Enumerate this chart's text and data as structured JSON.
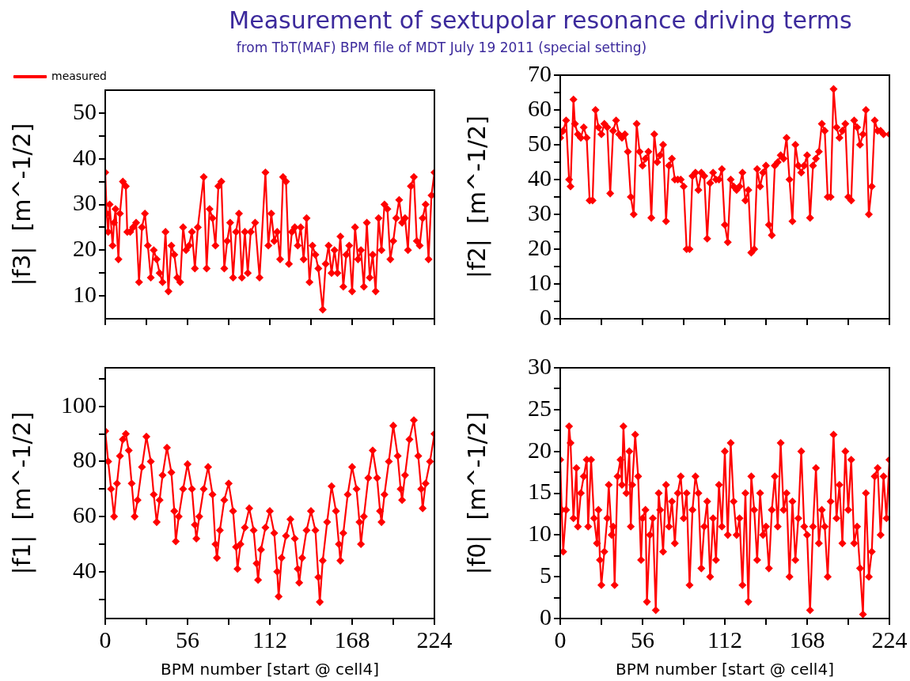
{
  "chart_data": [
    {
      "type": "line",
      "title": "Measurement of sextupolar resonance driving terms",
      "subtitle": "from TbT(MAF) BPM file of MDT July 19 2011 (special setting)",
      "ylabel": "|f3|  [m^-1/2]",
      "legend": "top left",
      "marker": "diamond",
      "tick_labels": "y",
      "xlim": [
        0,
        224
      ],
      "xticks": [
        0,
        {
          "value": 28,
          "label": null
        },
        56,
        {
          "value": 84,
          "label": null
        },
        112,
        {
          "value": 140,
          "label": null
        },
        168,
        {
          "value": 196,
          "label": null
        },
        224
      ],
      "ylim": [
        5,
        55
      ],
      "yticks": [
        10,
        {
          "value": 15,
          "label": null
        },
        20,
        {
          "value": 25,
          "label": null
        },
        30,
        {
          "value": 35,
          "label": null
        },
        40,
        {
          "value": 45,
          "label": null
        },
        50
      ],
      "series": [
        {
          "name": "measured",
          "color": "#ff0000",
          "x": [
            0,
            1,
            2,
            3,
            5,
            6,
            7,
            9,
            10,
            12,
            14,
            15,
            17,
            19,
            21,
            23,
            25,
            27,
            29,
            31,
            33,
            35,
            37,
            39,
            41,
            43,
            45,
            47,
            49,
            51,
            53,
            55,
            57,
            59,
            61,
            63,
            67,
            69,
            71,
            73,
            75,
            77,
            79,
            81,
            83,
            85,
            87,
            89,
            91,
            93,
            95,
            97,
            99,
            102,
            105,
            109,
            111,
            113,
            115,
            117,
            119,
            121,
            123,
            125,
            127,
            129,
            131,
            133,
            135,
            137,
            139,
            141,
            143,
            145,
            148,
            150,
            152,
            154,
            156,
            158,
            160,
            162,
            164,
            166,
            168,
            170,
            172,
            174,
            176,
            178,
            180,
            182,
            184,
            186,
            188,
            190,
            192,
            194,
            196,
            198,
            200,
            202,
            204,
            206,
            208,
            210,
            212,
            214,
            216,
            218,
            220,
            222,
            224
          ],
          "values": [
            37,
            28,
            24,
            30,
            21,
            26,
            29,
            18,
            28,
            35,
            34,
            24,
            24,
            25,
            26,
            13,
            25,
            28,
            21,
            14,
            20,
            18,
            15,
            13,
            24,
            11,
            21,
            19,
            14,
            13,
            25,
            20,
            21,
            24,
            16,
            25,
            36,
            16,
            29,
            27,
            21,
            34,
            35,
            16,
            22,
            26,
            14,
            24,
            28,
            14,
            24,
            15,
            24,
            26,
            14,
            37,
            21,
            28,
            22,
            24,
            18,
            36,
            35,
            17,
            24,
            25,
            21,
            25,
            18,
            27,
            13,
            21,
            19,
            16,
            7,
            17,
            21,
            15,
            20,
            15,
            23,
            12,
            19,
            21,
            11,
            25,
            18,
            20,
            12,
            26,
            14,
            19,
            11,
            27,
            20,
            30,
            29,
            18,
            22,
            27,
            31,
            26,
            27,
            20,
            34,
            36,
            22,
            21,
            27,
            30,
            18,
            32,
            37
          ]
        }
      ]
    },
    {
      "type": "line",
      "ylabel": "|f2|  [m^-1/2]",
      "marker": "diamond",
      "tick_labels": "y",
      "xlim": [
        0,
        224
      ],
      "xticks": [
        0,
        {
          "value": 28,
          "label": null
        },
        56,
        {
          "value": 84,
          "label": null
        },
        112,
        {
          "value": 140,
          "label": null
        },
        168,
        {
          "value": 196,
          "label": null
        },
        224
      ],
      "ylim": [
        0,
        70
      ],
      "yticks": [
        0,
        {
          "value": 5,
          "label": null
        },
        10,
        {
          "value": 15,
          "label": null
        },
        20,
        {
          "value": 25,
          "label": null
        },
        30,
        {
          "value": 35,
          "label": null
        },
        40,
        {
          "value": 45,
          "label": null
        },
        50,
        {
          "value": 55,
          "label": null
        },
        60,
        {
          "value": 65,
          "label": null
        },
        70
      ],
      "series": [
        {
          "color": "#ff0000",
          "x": [
            0,
            2,
            4,
            6,
            7,
            9,
            10,
            12,
            14,
            16,
            18,
            20,
            22,
            24,
            26,
            28,
            30,
            32,
            34,
            36,
            38,
            40,
            42,
            44,
            46,
            48,
            50,
            52,
            54,
            56,
            58,
            60,
            62,
            64,
            66,
            68,
            70,
            72,
            74,
            76,
            78,
            80,
            82,
            84,
            86,
            88,
            90,
            92,
            94,
            96,
            98,
            100,
            102,
            104,
            106,
            108,
            110,
            112,
            114,
            116,
            118,
            120,
            122,
            124,
            126,
            128,
            130,
            132,
            134,
            136,
            138,
            140,
            142,
            144,
            146,
            148,
            150,
            152,
            154,
            156,
            158,
            160,
            162,
            164,
            166,
            168,
            170,
            172,
            174,
            176,
            178,
            180,
            182,
            184,
            186,
            188,
            190,
            192,
            194,
            196,
            198,
            200,
            202,
            204,
            206,
            208,
            210,
            212,
            214,
            216,
            218,
            220,
            224
          ],
          "values": [
            52,
            54,
            57,
            40,
            38,
            63,
            56,
            53,
            52,
            55,
            52,
            34,
            34,
            60,
            55,
            53,
            56,
            55,
            36,
            54,
            57,
            53,
            52,
            53,
            48,
            35,
            30,
            56,
            48,
            44,
            46,
            48,
            29,
            53,
            45,
            47,
            50,
            28,
            44,
            46,
            40,
            40,
            40,
            38,
            20,
            20,
            41,
            42,
            37,
            42,
            41,
            23,
            39,
            42,
            40,
            40,
            43,
            27,
            22,
            40,
            38,
            37,
            38,
            42,
            34,
            37,
            19,
            20,
            43,
            38,
            42,
            44,
            27,
            24,
            44,
            45,
            47,
            46,
            52,
            40,
            28,
            50,
            44,
            42,
            44,
            47,
            29,
            44,
            46,
            48,
            56,
            54,
            35,
            35,
            66,
            55,
            52,
            54,
            56,
            35,
            34,
            57,
            55,
            50,
            53,
            60,
            30,
            38,
            57,
            54,
            54,
            53,
            53
          ]
        }
      ]
    },
    {
      "type": "line",
      "ylabel": "|f1|  [m^-1/2]",
      "xlabel": "BPM number [start @ cell4]",
      "marker": "diamond",
      "xlim": [
        0,
        224
      ],
      "xticks": [
        0,
        {
          "value": 28,
          "label": null
        },
        56,
        {
          "value": 84,
          "label": null
        },
        112,
        {
          "value": 140,
          "label": null
        },
        168,
        {
          "value": 196,
          "label": null
        },
        224
      ],
      "ylim": [
        23,
        114
      ],
      "yticks": [
        {
          "value": 30,
          "label": null
        },
        40,
        {
          "value": 50,
          "label": null
        },
        60,
        {
          "value": 70,
          "label": null
        },
        80,
        {
          "value": 90,
          "label": null
        },
        100,
        {
          "value": 110,
          "label": null
        }
      ],
      "series": [
        {
          "color": "#ff0000",
          "x": [
            0,
            2,
            4,
            6,
            8,
            10,
            12,
            14,
            16,
            18,
            20,
            22,
            25,
            28,
            31,
            33,
            35,
            37,
            39,
            42,
            45,
            47,
            48,
            50,
            53,
            56,
            59,
            61,
            62,
            64,
            67,
            70,
            73,
            75,
            76,
            78,
            81,
            84,
            87,
            89,
            90,
            92,
            95,
            98,
            101,
            103,
            104,
            106,
            109,
            112,
            115,
            117,
            118,
            120,
            123,
            126,
            129,
            131,
            132,
            134,
            137,
            140,
            143,
            145,
            146,
            148,
            151,
            154,
            157,
            159,
            160,
            162,
            165,
            168,
            171,
            173,
            174,
            176,
            179,
            182,
            185,
            187,
            188,
            190,
            193,
            196,
            199,
            201,
            202,
            204,
            207,
            210,
            213,
            215,
            216,
            218,
            221,
            224
          ],
          "values": [
            91,
            80,
            70,
            60,
            72,
            82,
            88,
            90,
            84,
            72,
            60,
            66,
            78,
            89,
            80,
            68,
            58,
            66,
            75,
            85,
            76,
            62,
            51,
            60,
            70,
            79,
            70,
            57,
            52,
            60,
            70,
            78,
            68,
            50,
            45,
            55,
            66,
            72,
            62,
            49,
            41,
            50,
            56,
            63,
            55,
            43,
            37,
            48,
            56,
            62,
            54,
            40,
            31,
            45,
            53,
            59,
            52,
            41,
            36,
            45,
            55,
            62,
            55,
            38,
            29,
            44,
            58,
            71,
            62,
            50,
            44,
            54,
            68,
            78,
            70,
            58,
            50,
            60,
            74,
            84,
            74,
            62,
            58,
            68,
            80,
            93,
            82,
            70,
            66,
            75,
            88,
            95,
            82,
            70,
            63,
            72,
            80,
            90
          ]
        }
      ]
    },
    {
      "type": "line",
      "ylabel": "|f0|  [m^-1/2]",
      "xlabel": "BPM number [start @ cell4]",
      "marker": "diamond",
      "xlim": [
        0,
        224
      ],
      "xticks": [
        0,
        {
          "value": 28,
          "label": null
        },
        56,
        {
          "value": 84,
          "label": null
        },
        112,
        {
          "value": 140,
          "label": null
        },
        168,
        {
          "value": 196,
          "label": null
        },
        224
      ],
      "ylim": [
        0,
        30
      ],
      "yticks": [
        0,
        {
          "value": 2.5,
          "label": null
        },
        5,
        {
          "value": 7.5,
          "label": null
        },
        10,
        {
          "value": 12.5,
          "label": null
        },
        15,
        {
          "value": 17.5,
          "label": null
        },
        20,
        {
          "value": 22.5,
          "label": null
        },
        25,
        {
          "value": 27.5,
          "label": null
        },
        30
      ],
      "series": [
        {
          "color": "#ff0000",
          "x": [
            0,
            1,
            2,
            4,
            6,
            7,
            9,
            11,
            12,
            14,
            16,
            18,
            19,
            21,
            23,
            25,
            26,
            27,
            28,
            30,
            32,
            33,
            35,
            36,
            37,
            39,
            41,
            42,
            43,
            45,
            47,
            48,
            49,
            51,
            53,
            55,
            56,
            58,
            59,
            61,
            63,
            65,
            67,
            68,
            70,
            72,
            74,
            76,
            78,
            80,
            82,
            84,
            86,
            88,
            90,
            92,
            94,
            96,
            98,
            100,
            102,
            104,
            106,
            108,
            110,
            112,
            114,
            116,
            118,
            120,
            122,
            124,
            126,
            128,
            130,
            132,
            134,
            136,
            138,
            140,
            142,
            144,
            146,
            148,
            150,
            152,
            154,
            156,
            158,
            160,
            162,
            164,
            166,
            168,
            170,
            172,
            174,
            176,
            178,
            180,
            182,
            184,
            186,
            188,
            190,
            192,
            194,
            196,
            198,
            200,
            202,
            204,
            206,
            208,
            210,
            212,
            214,
            216,
            218,
            220,
            222,
            224
          ],
          "values": [
            19,
            13,
            8,
            13,
            23,
            21,
            12,
            18,
            11,
            15,
            17,
            19,
            11,
            19,
            12,
            9,
            13,
            7,
            4,
            8,
            12,
            16,
            10,
            11,
            4,
            17,
            19,
            16,
            23,
            15,
            20,
            11,
            16,
            22,
            17,
            7,
            12,
            13,
            2,
            10,
            12,
            1,
            15,
            13,
            8,
            16,
            11,
            14,
            9,
            15,
            17,
            12,
            15,
            4,
            13,
            17,
            15,
            6,
            11,
            14,
            5,
            12,
            7,
            16,
            11,
            20,
            10,
            21,
            14,
            10,
            12,
            4,
            15,
            2,
            17,
            13,
            7,
            15,
            10,
            11,
            6,
            13,
            17,
            11,
            21,
            13,
            15,
            5,
            14,
            7,
            12,
            20,
            11,
            10,
            1,
            11,
            18,
            9,
            13,
            11,
            5,
            14,
            22,
            12,
            16,
            9,
            20,
            13,
            19,
            9,
            11,
            6,
            0.5,
            15,
            5,
            8,
            17,
            18,
            10,
            17,
            12,
            19
          ]
        }
      ]
    }
  ]
}
